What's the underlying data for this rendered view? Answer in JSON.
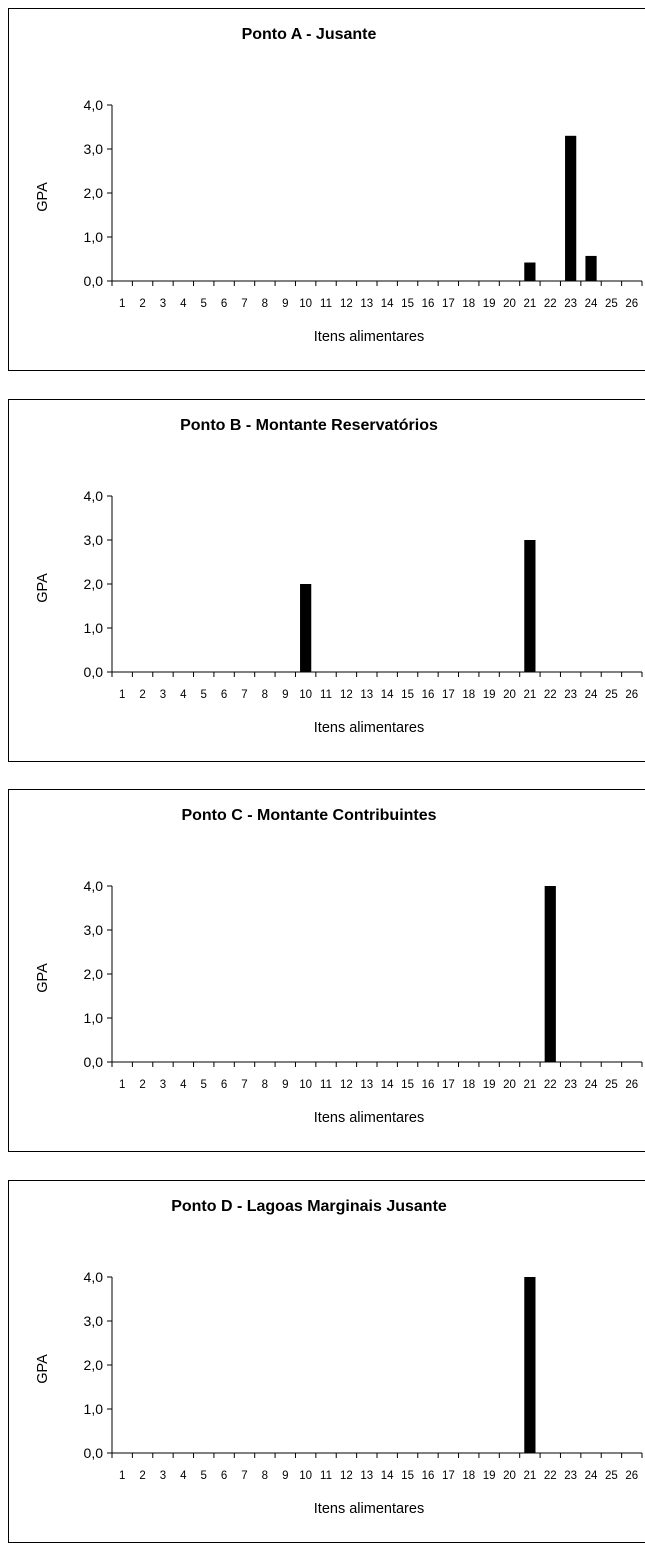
{
  "chart_data": [
    {
      "type": "bar",
      "title": "Ponto A - Jusante",
      "ylabel": "GPA",
      "xlabel": "Itens alimentares",
      "ylim": [
        0,
        4
      ],
      "y_ticks": [
        "0,0",
        "1,0",
        "2,0",
        "3,0",
        "4,0"
      ],
      "categories": [
        "1",
        "2",
        "3",
        "4",
        "5",
        "6",
        "7",
        "8",
        "9",
        "10",
        "11",
        "12",
        "13",
        "14",
        "15",
        "16",
        "17",
        "18",
        "19",
        "20",
        "21",
        "22",
        "23",
        "24",
        "25",
        "26"
      ],
      "values": [
        0,
        0,
        0,
        0,
        0,
        0,
        0,
        0,
        0,
        0,
        0,
        0,
        0,
        0,
        0,
        0,
        0,
        0,
        0,
        0,
        0.42,
        0,
        3.3,
        0.57,
        0,
        0
      ],
      "bar_color": "#000000"
    },
    {
      "type": "bar",
      "title": "Ponto B - Montante Reservatórios",
      "ylabel": "GPA",
      "xlabel": "Itens alimentares",
      "ylim": [
        0,
        4
      ],
      "y_ticks": [
        "0,0",
        "1,0",
        "2,0",
        "3,0",
        "4,0"
      ],
      "categories": [
        "1",
        "2",
        "3",
        "4",
        "5",
        "6",
        "7",
        "8",
        "9",
        "10",
        "11",
        "12",
        "13",
        "14",
        "15",
        "16",
        "17",
        "18",
        "19",
        "20",
        "21",
        "22",
        "23",
        "24",
        "25",
        "26"
      ],
      "values": [
        0,
        0,
        0,
        0,
        0,
        0,
        0,
        0,
        0,
        2,
        0,
        0,
        0,
        0,
        0,
        0,
        0,
        0,
        0,
        0,
        3,
        0,
        0,
        0,
        0,
        0
      ],
      "bar_color": "#000000"
    },
    {
      "type": "bar",
      "title": "Ponto C - Montante Contribuintes",
      "ylabel": "GPA",
      "xlabel": "Itens alimentares",
      "ylim": [
        0,
        4
      ],
      "y_ticks": [
        "0,0",
        "1,0",
        "2,0",
        "3,0",
        "4,0"
      ],
      "categories": [
        "1",
        "2",
        "3",
        "4",
        "5",
        "6",
        "7",
        "8",
        "9",
        "10",
        "11",
        "12",
        "13",
        "14",
        "15",
        "16",
        "17",
        "18",
        "19",
        "20",
        "21",
        "22",
        "23",
        "24",
        "25",
        "26"
      ],
      "values": [
        0,
        0,
        0,
        0,
        0,
        0,
        0,
        0,
        0,
        0,
        0,
        0,
        0,
        0,
        0,
        0,
        0,
        0,
        0,
        0,
        0,
        4,
        0,
        0,
        0,
        0
      ],
      "bar_color": "#000000"
    },
    {
      "type": "bar",
      "title": "Ponto D - Lagoas Marginais Jusante",
      "ylabel": "GPA",
      "xlabel": "Itens alimentares",
      "ylim": [
        0,
        4
      ],
      "y_ticks": [
        "0,0",
        "1,0",
        "2,0",
        "3,0",
        "4,0"
      ],
      "categories": [
        "1",
        "2",
        "3",
        "4",
        "5",
        "6",
        "7",
        "8",
        "9",
        "10",
        "11",
        "12",
        "13",
        "14",
        "15",
        "16",
        "17",
        "18",
        "19",
        "20",
        "21",
        "22",
        "23",
        "24",
        "25",
        "26"
      ],
      "values": [
        0,
        0,
        0,
        0,
        0,
        0,
        0,
        0,
        0,
        0,
        0,
        0,
        0,
        0,
        0,
        0,
        0,
        0,
        0,
        0,
        4,
        0,
        0,
        0,
        0,
        0
      ],
      "bar_color": "#000000"
    }
  ]
}
